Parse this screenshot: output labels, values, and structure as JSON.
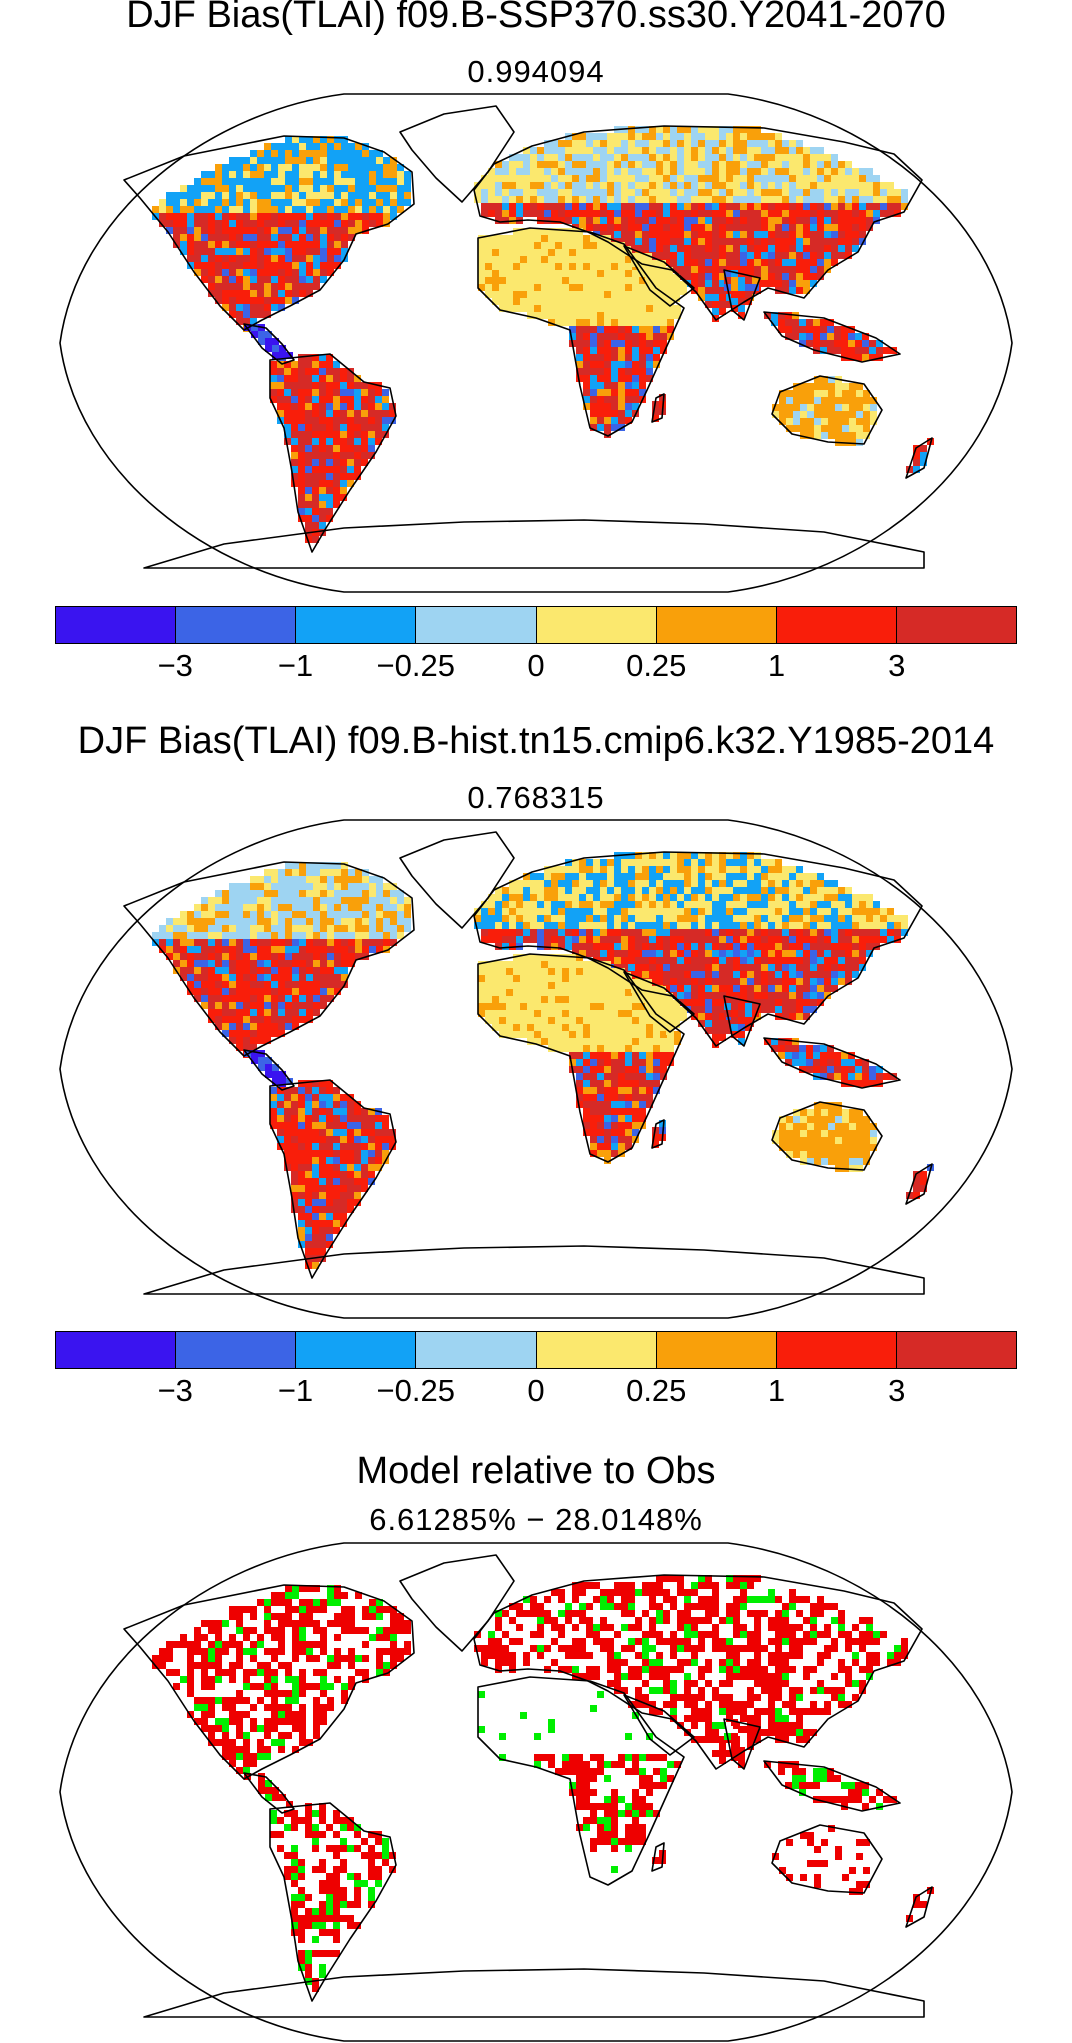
{
  "panels": [
    {
      "title": "DJF Bias(TLAI) f09.B-SSP370.ss30.Y2041-2070",
      "subtitle": "0.994094",
      "kind": "bias"
    },
    {
      "title": "DJF Bias(TLAI) f09.B-hist.tn15.cmip6.k32.Y1985-2014",
      "subtitle": "0.768315",
      "kind": "bias"
    },
    {
      "title": "Model relative to Obs",
      "subtitle": "6.61285% − 28.0148%",
      "kind": "relative"
    }
  ],
  "colorbar": {
    "colors": [
      "#3a14f0",
      "#3c64e6",
      "#12a2f6",
      "#9ed4f2",
      "#fbe86e",
      "#f9a00a",
      "#f91e0a",
      "#d62a26"
    ],
    "tick_labels": [
      "−3",
      "−1",
      "−0.25",
      "0",
      "0.25",
      "1",
      "3"
    ]
  },
  "relative_colors": {
    "red": "#ee0000",
    "green": "#00ee00"
  }
}
